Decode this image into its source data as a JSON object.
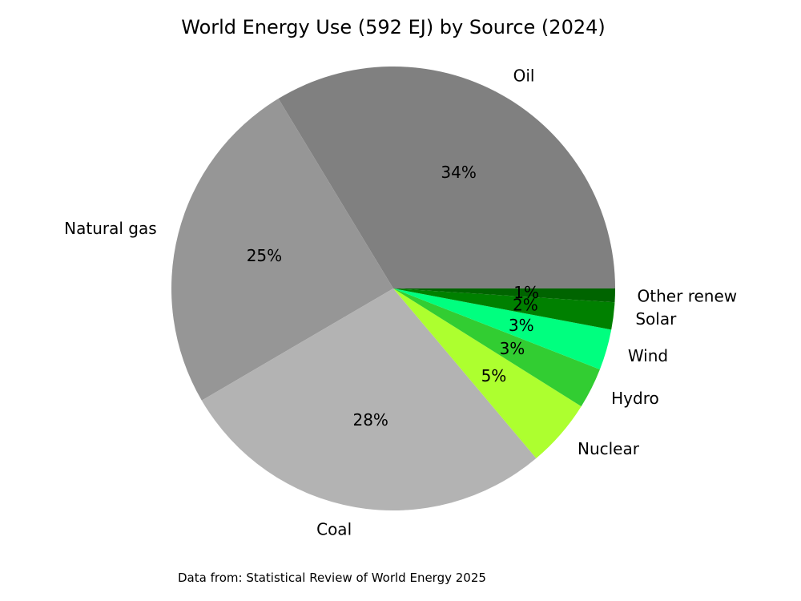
{
  "chart_data": {
    "type": "pie",
    "title": "World Energy Use (592 EJ) by Source (2024)",
    "categories": [
      "Oil",
      "Natural gas",
      "Coal",
      "Nuclear",
      "Hydro",
      "Wind",
      "Solar",
      "Other renew"
    ],
    "values": [
      34,
      25,
      28,
      5,
      3,
      3,
      2,
      1
    ],
    "percent_labels": [
      "34%",
      "25%",
      "28%",
      "5%",
      "3%",
      "3%",
      "2%",
      "1%"
    ],
    "colors": [
      "#808080",
      "#969696",
      "#b3b3b3",
      "#adff2f",
      "#32cd32",
      "#00ff7f",
      "#008000",
      "#006400"
    ],
    "start_angle_deg": 0,
    "direction": "counterclockwise",
    "legend": "none"
  },
  "footer": {
    "source_note": "Data from: Statistical Review of World Energy 2025"
  }
}
